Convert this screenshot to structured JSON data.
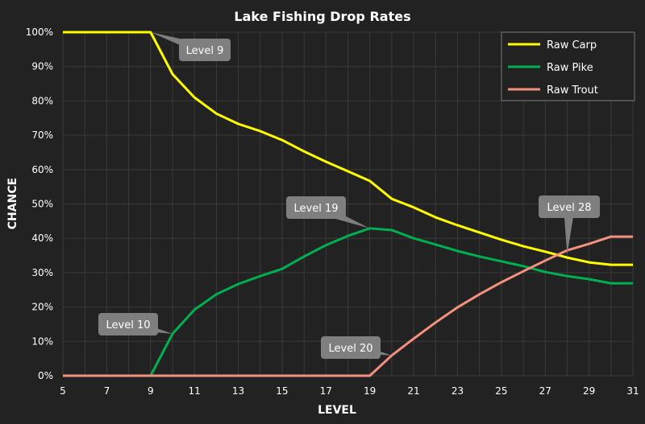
{
  "chart_data": {
    "type": "line",
    "title": "Lake Fishing Drop Rates",
    "xlabel": "LEVEL",
    "ylabel": "CHANCE",
    "xlim": [
      5,
      31
    ],
    "ylim": [
      0,
      100
    ],
    "x_ticks": [
      "5",
      "7",
      "9",
      "11",
      "13",
      "15",
      "17",
      "19",
      "21",
      "23",
      "25",
      "27",
      "29",
      "31"
    ],
    "y_ticks": [
      "0%",
      "10%",
      "20%",
      "30%",
      "40%",
      "50%",
      "60%",
      "70%",
      "80%",
      "90%",
      "100%"
    ],
    "grid": true,
    "legend_position": "top-right",
    "x": [
      5,
      6,
      7,
      8,
      9,
      10,
      11,
      12,
      13,
      14,
      15,
      16,
      17,
      18,
      19,
      20,
      21,
      22,
      23,
      24,
      25,
      26,
      27,
      28,
      29,
      30,
      31
    ],
    "series": [
      {
        "name": "Raw Carp",
        "color": "#FFFF00",
        "values": [
          100,
          100,
          100,
          100,
          100,
          87.8,
          81,
          76.3,
          73.3,
          71.2,
          68.6,
          65.3,
          62.3,
          59.5,
          56.7,
          51.5,
          49,
          46.1,
          43.8,
          41.7,
          39.6,
          37.7,
          36.1,
          34.4,
          33,
          32.3,
          32.3
        ]
      },
      {
        "name": "Raw Pike",
        "color": "#00B050",
        "values": [
          0,
          0,
          0,
          0,
          0,
          12.2,
          19.2,
          23.7,
          26.7,
          29,
          31.1,
          34.7,
          38,
          40.7,
          42.9,
          42.4,
          40,
          38.2,
          36.3,
          34.7,
          33.3,
          31.9,
          30.2,
          29,
          28.1,
          26.9,
          26.9
        ]
      },
      {
        "name": "Raw Trout",
        "color": "#F4917E",
        "values": [
          0,
          0,
          0,
          0,
          0,
          0,
          0,
          0,
          0,
          0,
          0,
          0,
          0,
          0,
          0,
          5.9,
          10.8,
          15.5,
          19.9,
          23.7,
          27.2,
          30.4,
          33.5,
          36.5,
          38.4,
          40.5,
          40.5
        ]
      }
    ],
    "annotations": [
      {
        "text": "Level 9",
        "x": 9,
        "y": 100,
        "series": "Raw Carp"
      },
      {
        "text": "Level 10",
        "x": 10,
        "y": 12.2,
        "series": "Raw Pike"
      },
      {
        "text": "Level 19",
        "x": 19,
        "y": 42.9,
        "series": "Raw Pike"
      },
      {
        "text": "Level 20",
        "x": 20,
        "y": 5.9,
        "series": "Raw Trout"
      },
      {
        "text": "Level 28",
        "x": 28,
        "y": 35.2,
        "series": "Raw Trout"
      }
    ]
  }
}
